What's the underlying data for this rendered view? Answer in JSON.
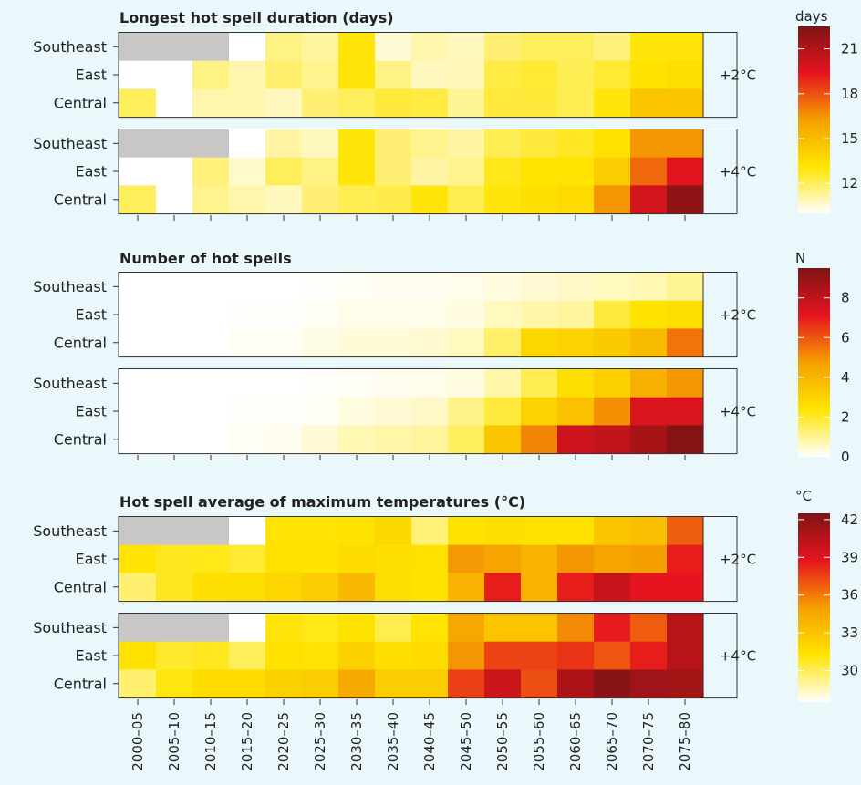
{
  "chart_data": [
    {
      "type": "heatmap",
      "title": "Longest hot spell duration (days)",
      "colorbar_label": "days",
      "colorbar_ticks": [
        12,
        15,
        18,
        21
      ],
      "colorbar_range": [
        10,
        22.5
      ],
      "rows": [
        "Southeast",
        "East",
        "Central"
      ],
      "x": [
        "2000–05",
        "2005–10",
        "2010–15",
        "2015–20",
        "2020–25",
        "2025–30",
        "2030–35",
        "2035–40",
        "2040–45",
        "2045–50",
        "2050–55",
        "2055–60",
        "2060–65",
        "2065–70",
        "2070–75",
        "2075–80"
      ],
      "facets": [
        {
          "label": "+2°C",
          "values": [
            [
              null,
              null,
              null,
              10,
              11.5,
              11.2,
              13,
              10.5,
              11,
              10.8,
              11.7,
              12,
              12,
              11.6,
              13,
              13
            ],
            [
              10,
              10,
              11.5,
              11,
              11.8,
              11.4,
              13,
              11.5,
              10.8,
              10.9,
              12.3,
              12.5,
              12.1,
              12.5,
              13.2,
              13.4
            ],
            [
              12,
              10,
              11,
              11,
              10.8,
              11.7,
              12,
              12.4,
              12.3,
              11.3,
              12.4,
              12.4,
              12.1,
              13,
              14.5,
              14.5
            ]
          ]
        },
        {
          "label": "+4°C",
          "values": [
            [
              null,
              null,
              null,
              10,
              11.1,
              10.8,
              13,
              11.7,
              11.4,
              11.1,
              12.1,
              12.4,
              12.7,
              13.2,
              16.5,
              16.5
            ],
            [
              10,
              10,
              11.6,
              10.6,
              12,
              11.5,
              13,
              11.7,
              11.1,
              11.4,
              12.8,
              13.1,
              13.1,
              14.2,
              17.5,
              19.5
            ],
            [
              12,
              10,
              11.4,
              11,
              10.8,
              11.7,
              12.1,
              12.2,
              13,
              12.1,
              13,
              13.3,
              13.6,
              16.5,
              20,
              22
            ]
          ]
        }
      ]
    },
    {
      "type": "heatmap",
      "title": "Number of hot spells",
      "colorbar_label": "N",
      "colorbar_ticks": [
        0,
        2,
        4,
        6,
        8
      ],
      "colorbar_range": [
        0,
        9.5
      ],
      "rows": [
        "Southeast",
        "East",
        "Central"
      ],
      "x": [
        "2000–05",
        "2005–10",
        "2010–15",
        "2015–20",
        "2020–25",
        "2025–30",
        "2030–35",
        "2035–40",
        "2040–45",
        "2045–50",
        "2050–55",
        "2055–60",
        "2060–65",
        "2065–70",
        "2070–75",
        "2075–80"
      ],
      "facets": [
        {
          "label": "+2°C",
          "values": [
            [
              0,
              0,
              0,
              0,
              0,
              0.05,
              0.1,
              0.15,
              0.15,
              0.2,
              0.3,
              0.4,
              0.5,
              0.6,
              0.7,
              1.0
            ],
            [
              0,
              0,
              0,
              0.05,
              0.05,
              0.1,
              0.2,
              0.2,
              0.2,
              0.3,
              0.6,
              0.8,
              0.9,
              1.8,
              2.4,
              2.6
            ],
            [
              0,
              0,
              0,
              0.1,
              0.1,
              0.25,
              0.35,
              0.35,
              0.45,
              0.6,
              1.4,
              2.8,
              3.0,
              3.3,
              3.8,
              5.5
            ]
          ]
        },
        {
          "label": "+4°C",
          "values": [
            [
              0,
              0,
              0,
              0,
              0,
              0.05,
              0.1,
              0.15,
              0.2,
              0.3,
              0.8,
              1.6,
              2.6,
              3.1,
              4.2,
              4.9
            ],
            [
              0,
              0,
              0,
              0.05,
              0.05,
              0.1,
              0.3,
              0.4,
              0.5,
              1.1,
              1.8,
              3.0,
              3.6,
              5.0,
              7.4,
              7.4
            ],
            [
              0,
              0,
              0,
              0.1,
              0.15,
              0.4,
              0.7,
              0.8,
              0.9,
              1.5,
              3.5,
              5.2,
              7.7,
              8.0,
              8.6,
              9.4
            ]
          ]
        }
      ]
    },
    {
      "type": "heatmap",
      "title": "Hot spell average of maximum temperatures (°C)",
      "colorbar_label": "°C",
      "colorbar_ticks": [
        30,
        33,
        36,
        39,
        42
      ],
      "colorbar_range": [
        27.5,
        42.5
      ],
      "rows": [
        "Southeast",
        "East",
        "Central"
      ],
      "x": [
        "2000–05",
        "2005–10",
        "2010–15",
        "2015–20",
        "2020–25",
        "2025–30",
        "2030–35",
        "2035–40",
        "2040–45",
        "2045–50",
        "2050–55",
        "2055–60",
        "2060–65",
        "2065–70",
        "2070–75",
        "2075–80"
      ],
      "facets": [
        {
          "label": "+2°C",
          "values": [
            [
              null,
              null,
              null,
              27.5,
              31.2,
              31.2,
              31.3,
              31.9,
              29.5,
              31.3,
              31.5,
              31.4,
              31.4,
              32.9,
              33.3,
              36.8
            ],
            [
              31.2,
              30.8,
              30.9,
              30.5,
              31.4,
              31.3,
              31.7,
              31.5,
              31.4,
              35.2,
              34.7,
              34.0,
              35.3,
              34.7,
              35.0,
              38.5
            ],
            [
              29.6,
              30.8,
              31.5,
              31.6,
              32.1,
              32.5,
              33.6,
              31.6,
              31.3,
              34.0,
              38.5,
              34.0,
              38.5,
              39.9,
              38.8,
              38.8
            ]
          ]
        },
        {
          "label": "+4°C",
          "values": [
            [
              null,
              null,
              null,
              27.5,
              31.1,
              30.9,
              31.3,
              30.1,
              31.2,
              34.6,
              33.0,
              33.0,
              35.6,
              38.6,
              36.8,
              40.5
            ],
            [
              31.4,
              30.6,
              30.8,
              29.9,
              31.4,
              31.2,
              32.3,
              31.5,
              31.7,
              35.3,
              37.5,
              37.5,
              37.9,
              37.0,
              38.5,
              40.5
            ],
            [
              29.6,
              31.0,
              31.7,
              31.7,
              32.3,
              32.6,
              34.4,
              32.6,
              32.6,
              37.6,
              39.7,
              37.2,
              40.9,
              42.2,
              41.4,
              41.2
            ]
          ]
        }
      ]
    }
  ]
}
